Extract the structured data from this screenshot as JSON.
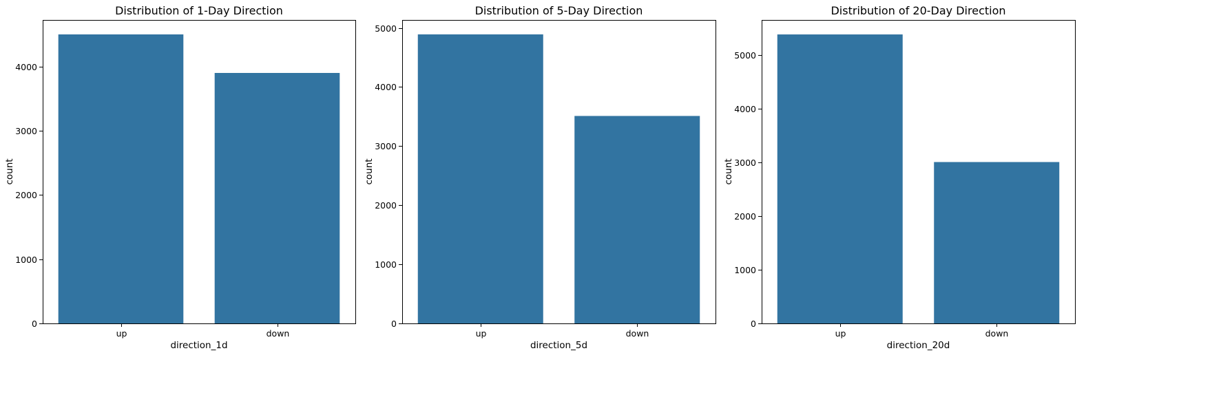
{
  "chart_data": [
    {
      "type": "bar",
      "title": "Distribution of 1-Day Direction",
      "xlabel": "direction_1d",
      "ylabel": "count",
      "categories": [
        "up",
        "down"
      ],
      "values": [
        4500,
        3900
      ],
      "ylim": [
        0,
        4725
      ],
      "yticks": [
        0,
        1000,
        2000,
        3000,
        4000
      ],
      "ytick_labels": [
        "0",
        "1000",
        "2000",
        "3000",
        "4000"
      ],
      "bar_color": "#3274a1",
      "grid": false,
      "legend": "none"
    },
    {
      "type": "bar",
      "title": "Distribution of 5-Day Direction",
      "xlabel": "direction_5d",
      "ylabel": "count",
      "categories": [
        "up",
        "down"
      ],
      "values": [
        4890,
        3510
      ],
      "ylim": [
        0,
        5134
      ],
      "yticks": [
        0,
        1000,
        2000,
        3000,
        4000,
        5000
      ],
      "ytick_labels": [
        "0",
        "1000",
        "2000",
        "3000",
        "4000",
        "5000"
      ],
      "bar_color": "#3274a1",
      "grid": false,
      "legend": "none"
    },
    {
      "type": "bar",
      "title": "Distribution of 20-Day Direction",
      "xlabel": "direction_20d",
      "ylabel": "count",
      "categories": [
        "up",
        "down"
      ],
      "values": [
        5390,
        3010
      ],
      "ylim": [
        0,
        5660
      ],
      "yticks": [
        0,
        1000,
        2000,
        3000,
        4000,
        5000
      ],
      "ytick_labels": [
        "0",
        "1000",
        "2000",
        "3000",
        "4000",
        "5000"
      ],
      "bar_color": "#3274a1",
      "grid": false,
      "legend": "none"
    }
  ]
}
